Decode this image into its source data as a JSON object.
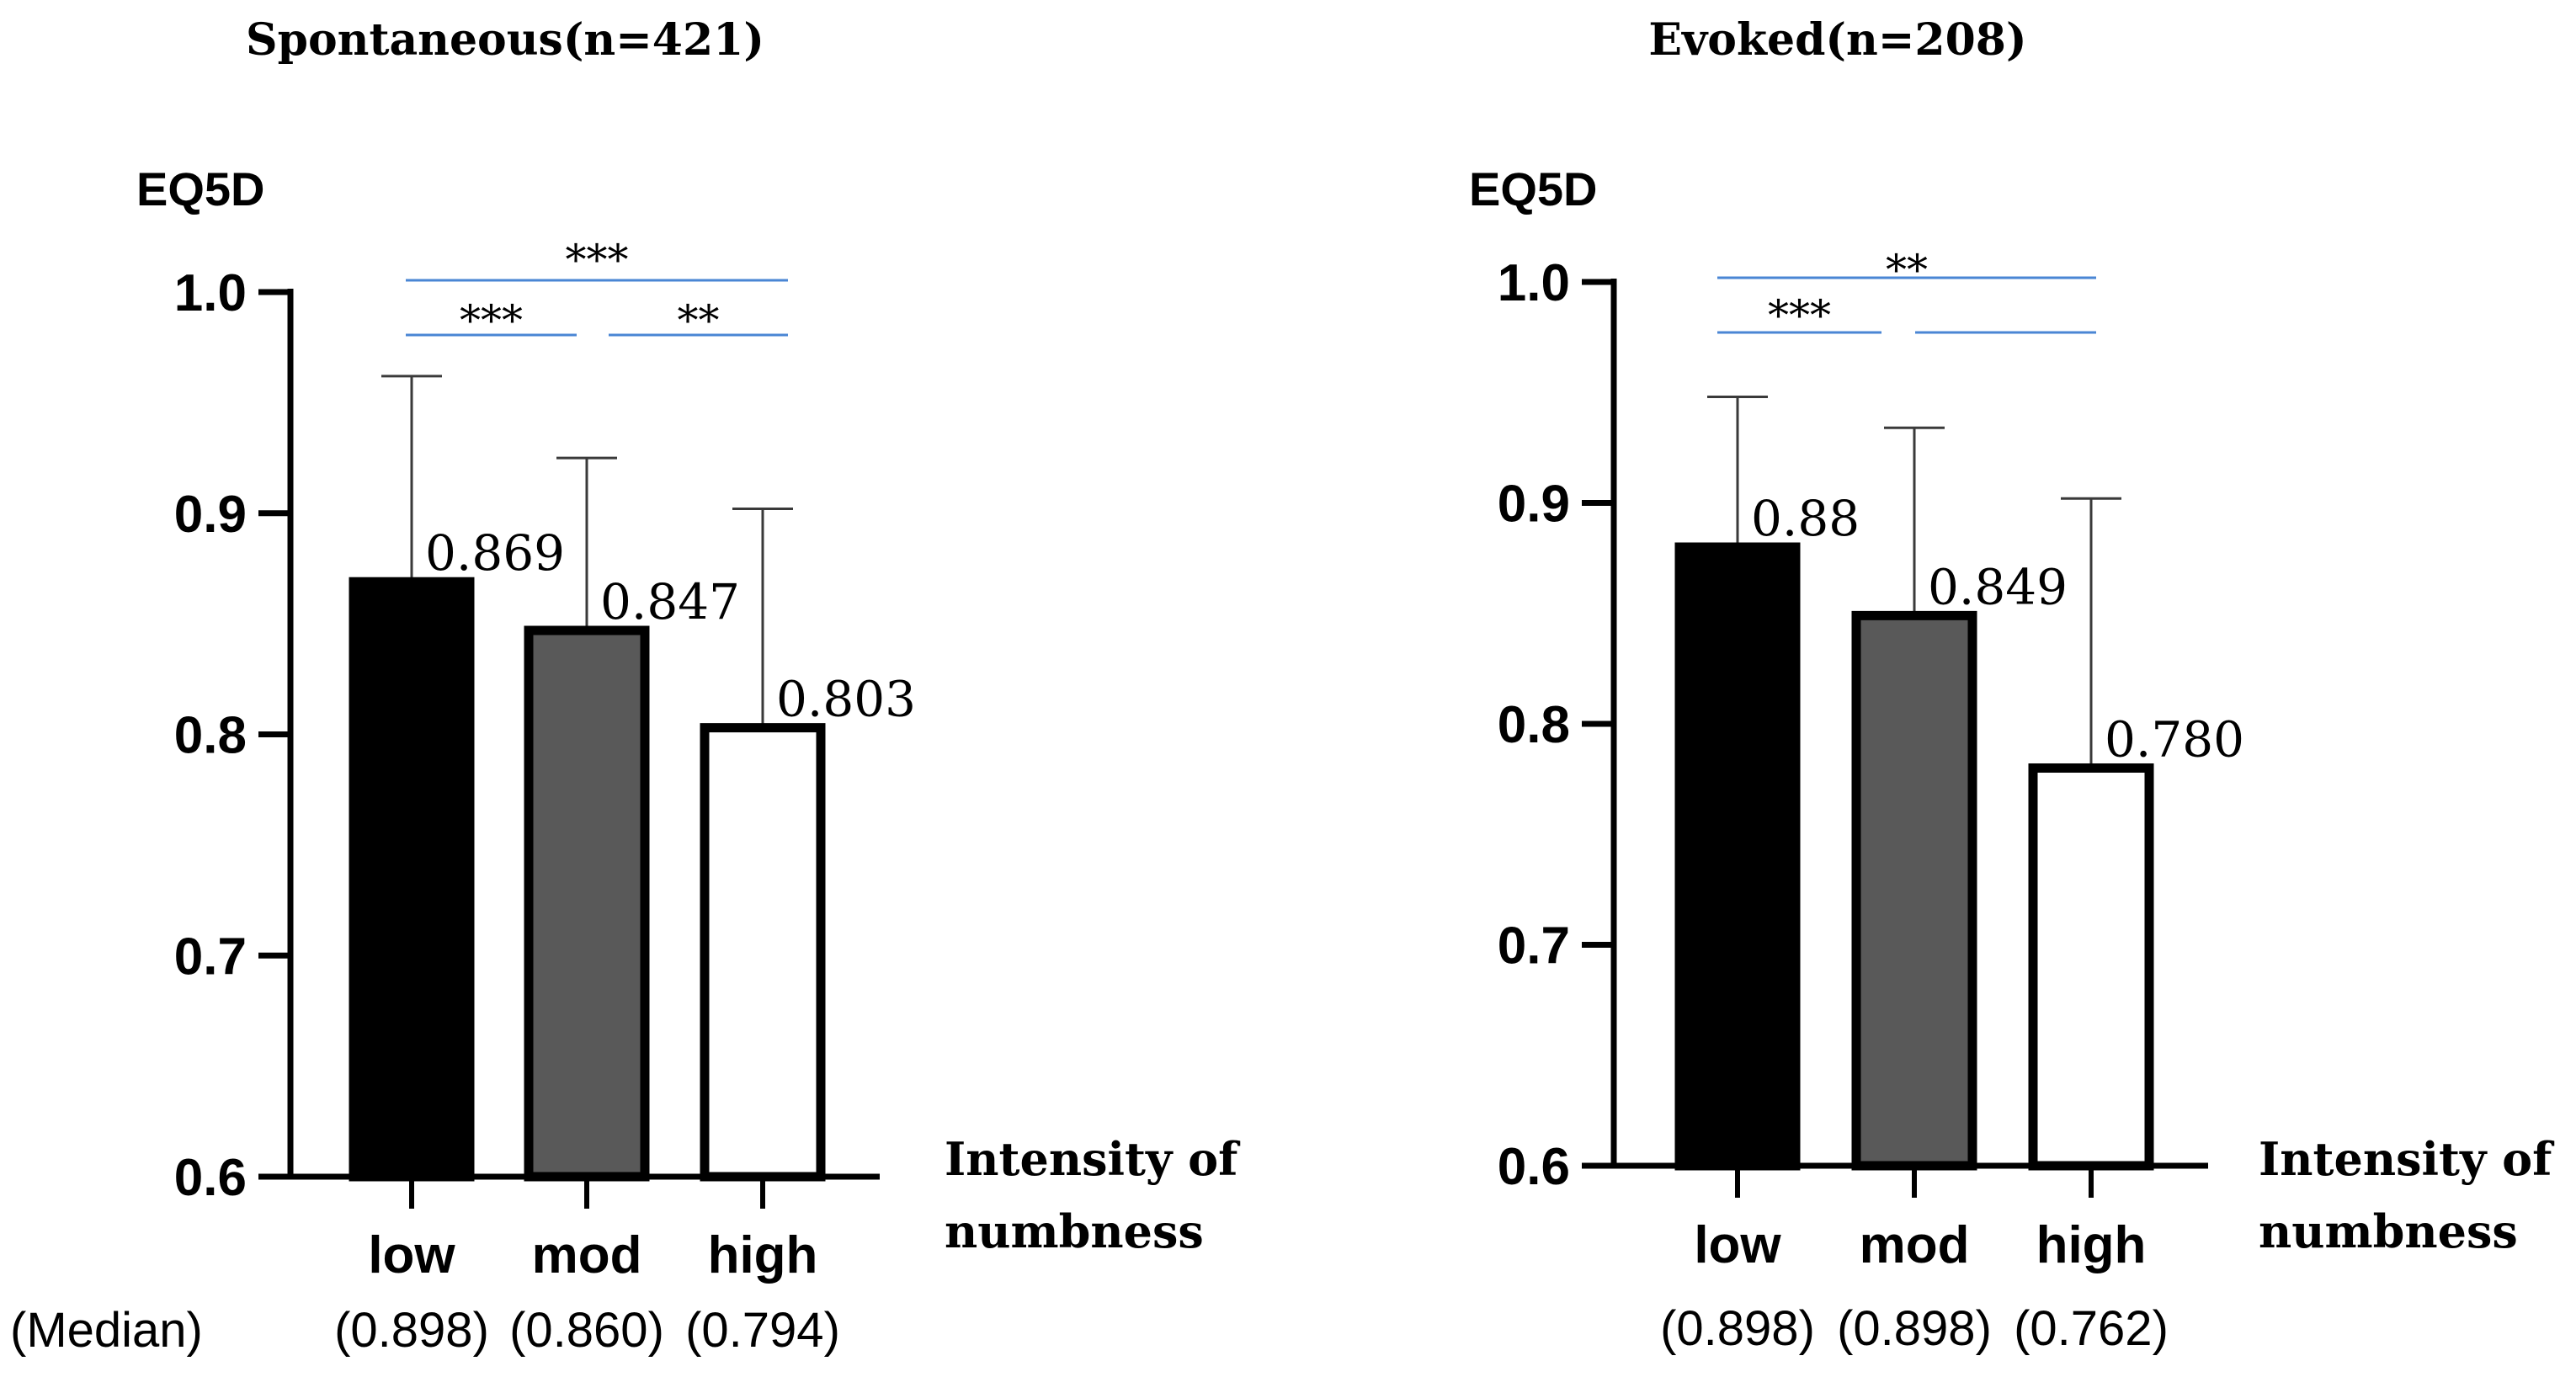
{
  "chart_data": [
    {
      "type": "bar",
      "title": "Spontaneous(n=421)",
      "ylabel": "EQ5D",
      "xlabel": [
        "Intensity of",
        "numbness"
      ],
      "median_label": "(Median)",
      "ylim": [
        0.6,
        1.0
      ],
      "yticks": [
        "0.6",
        "0.7",
        "0.8",
        "0.9",
        "1.0"
      ],
      "categories": [
        "low",
        "mod",
        "high"
      ],
      "values": [
        0.869,
        0.847,
        0.803
      ],
      "value_labels": [
        "0.869",
        "0.847",
        "0.803"
      ],
      "error_upper": [
        0.962,
        0.925,
        0.902
      ],
      "medians": [
        "(0.898)",
        "(0.860)",
        "(0.794)"
      ],
      "bar_colors": [
        "#000000",
        "#595959",
        "#ffffff"
      ],
      "significance": [
        {
          "from": "low",
          "to": "high",
          "label": "***"
        },
        {
          "from": "low",
          "to": "mod",
          "label": "***"
        },
        {
          "from": "mod",
          "to": "high",
          "label": "**"
        }
      ]
    },
    {
      "type": "bar",
      "title": "Evoked(n=208)",
      "ylabel": "EQ5D",
      "xlabel": [
        "Intensity of",
        "numbness"
      ],
      "median_label": "",
      "ylim": [
        0.6,
        1.0
      ],
      "yticks": [
        "0.6",
        "0.7",
        "0.8",
        "0.9",
        "1.0"
      ],
      "categories": [
        "low",
        "mod",
        "high"
      ],
      "values": [
        0.88,
        0.849,
        0.78
      ],
      "value_labels": [
        "0.88",
        "0.849",
        "0.780"
      ],
      "error_upper": [
        0.948,
        0.934,
        0.902
      ],
      "medians": [
        "(0.898)",
        "(0.898)",
        "(0.762)"
      ],
      "bar_colors": [
        "#000000",
        "#595959",
        "#ffffff"
      ],
      "significance": [
        {
          "from": "low",
          "to": "high",
          "label": "**"
        },
        {
          "from": "low",
          "to": "mod",
          "label": "***"
        },
        {
          "from": "mod",
          "to": "high",
          "label": ""
        }
      ]
    }
  ],
  "colors": {
    "axis": "#000000",
    "bar_border": "#000000",
    "sig_line": "#4a86d4",
    "error_bar": "#3a3a3a"
  }
}
